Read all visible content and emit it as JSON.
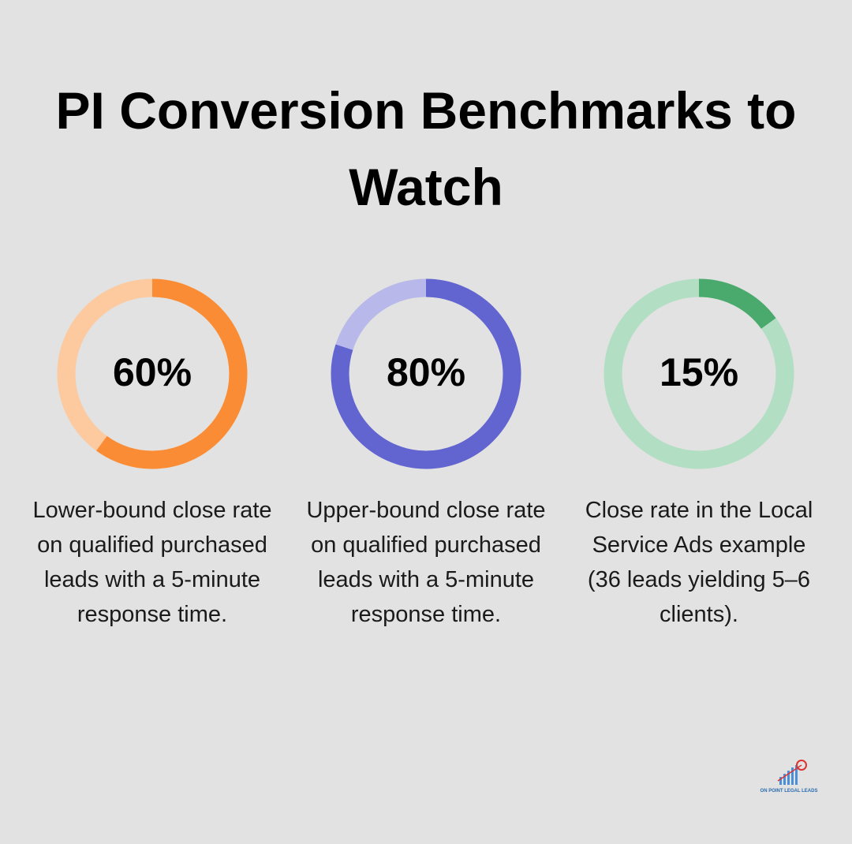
{
  "title": "PI Conversion Benchmarks to Watch",
  "chart_data": [
    {
      "type": "donut",
      "values": [
        60
      ],
      "value_labels": [
        "60%"
      ],
      "color": "#fa8c35",
      "track_color": "#fdc99f",
      "caption": "Lower-bound close rate on qualified purchased leads with a 5-minute response time."
    },
    {
      "type": "donut",
      "values": [
        80
      ],
      "value_labels": [
        "80%"
      ],
      "color": "#6264d0",
      "track_color": "#b8b9ea",
      "caption": "Upper-bound close rate on qualified purchased leads with a 5-minute response time."
    },
    {
      "type": "donut",
      "values": [
        15
      ],
      "value_labels": [
        "15%"
      ],
      "color": "#4aa96c",
      "track_color": "#b2dec3",
      "caption": "Close rate in the Local Service Ads example (36 leads yielding 5–6 clients)."
    }
  ],
  "logo": {
    "text": "ON POINT LEGAL LEADS"
  }
}
